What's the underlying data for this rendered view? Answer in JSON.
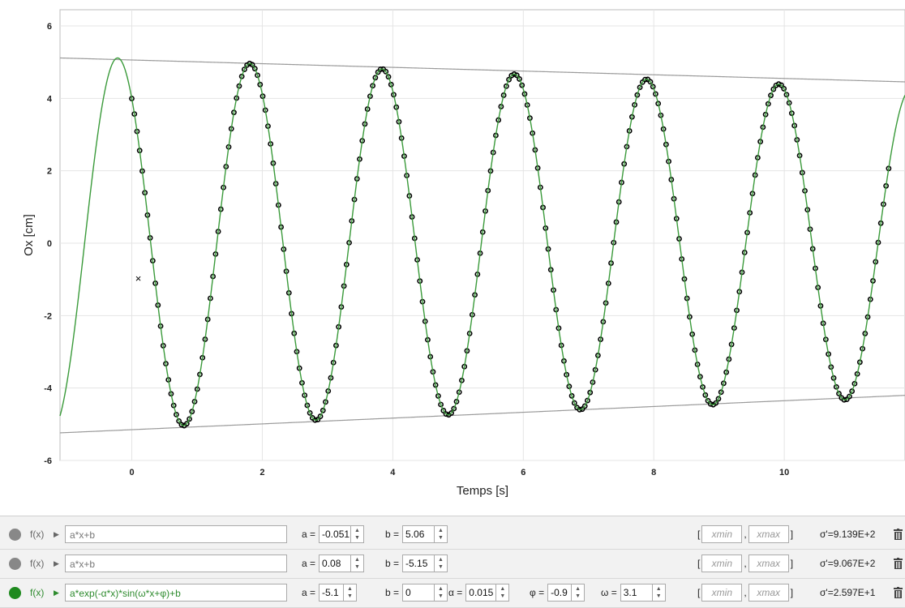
{
  "chart_data": {
    "type": "scatter",
    "xlabel": "Temps [s]",
    "ylabel": "Ox [cm]",
    "xlim": [
      -1.1,
      11.85
    ],
    "ylim": [
      -6,
      6
    ],
    "x_ticks": [
      0,
      2,
      4,
      6,
      8,
      10
    ],
    "y_ticks": [
      -6,
      -4,
      -2,
      0,
      2,
      4,
      6
    ],
    "grid": true,
    "series": [
      {
        "kind": "points",
        "color": "#000000",
        "x_start": 0.0,
        "x_end": 11.6,
        "count": 290,
        "model": "a*exp(-α*x)*sin(ω*x+φ)+b",
        "params": {
          "a": -5.1,
          "b": 0,
          "alpha": 0.015,
          "phi": -0.9,
          "omega": 3.1
        }
      },
      {
        "kind": "line",
        "color": "#3a9a3a",
        "model": "a*exp(-α*x)*sin(ω*x+φ)+b",
        "params": {
          "a": -5.1,
          "b": 0,
          "alpha": 0.015,
          "phi": -0.9,
          "omega": 3.1
        }
      },
      {
        "kind": "line",
        "color": "#9a9a9a",
        "model": "a*x+b",
        "params": {
          "a": -0.051,
          "b": 5.06
        }
      },
      {
        "kind": "line",
        "color": "#9a9a9a",
        "model": "a*x+b",
        "params": {
          "a": 0.08,
          "b": -5.15
        }
      }
    ],
    "marker": {
      "x": 0.1,
      "y": -1.0,
      "symbol": "×"
    }
  },
  "fits": [
    {
      "fx_label": "f(x)",
      "color": "#888888",
      "active": false,
      "expression": "a*x+b",
      "params": [
        {
          "name": "a =",
          "value": "-0.051"
        },
        {
          "name": "b =",
          "value": "5.06"
        }
      ],
      "xmin_placeholder": "xmin",
      "xmax_placeholder": "xmax",
      "sigma": "σ'=9.139E+2"
    },
    {
      "fx_label": "f(x)",
      "color": "#888888",
      "active": false,
      "expression": "a*x+b",
      "params": [
        {
          "name": "a =",
          "value": "0.08"
        },
        {
          "name": "b =",
          "value": "-5.15"
        }
      ],
      "xmin_placeholder": "xmin",
      "xmax_placeholder": "xmax",
      "sigma": "σ'=9.067E+2"
    },
    {
      "fx_label": "f(x)",
      "color": "#1f8a1f",
      "active": true,
      "expression": "a*exp(-α*x)*sin(ω*x+φ)+b",
      "params": [
        {
          "name": "a =",
          "value": "-5.1"
        },
        {
          "name": "b =",
          "value": "0"
        },
        {
          "name": "α =",
          "value": "0.015"
        },
        {
          "name": "φ =",
          "value": "-0.9"
        },
        {
          "name": "ω =",
          "value": "3.1"
        }
      ],
      "xmin_placeholder": "xmin",
      "xmax_placeholder": "xmax",
      "sigma": "σ'=2.597E+1"
    }
  ],
  "range_open": "[",
  "range_sep": ",",
  "range_close": "]",
  "icons": {
    "delete": "trash-icon",
    "expand": "triangle-right-icon",
    "spin": "spinner-icon"
  }
}
